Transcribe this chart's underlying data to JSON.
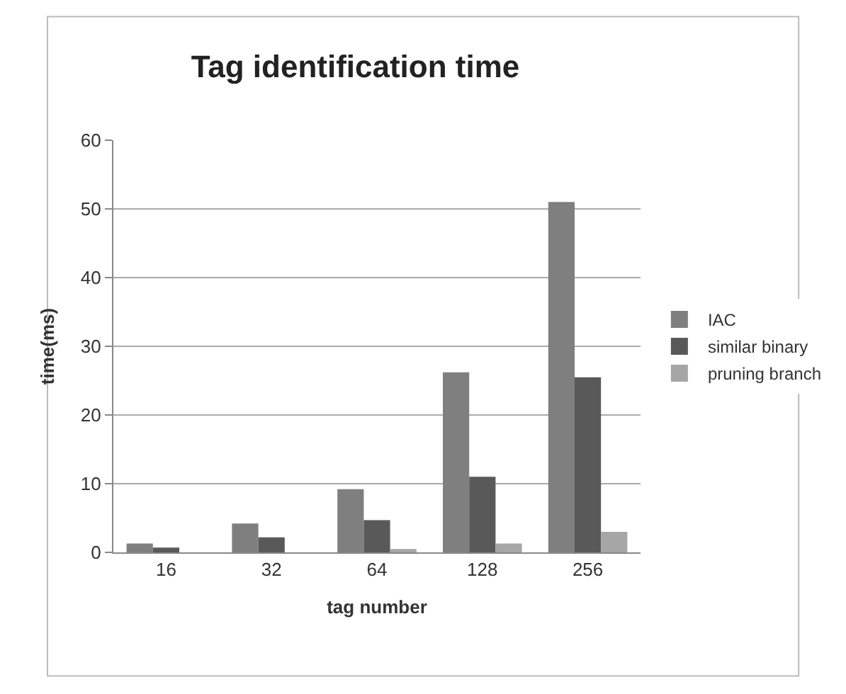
{
  "chart_data": {
    "type": "bar",
    "title": "Tag identification time",
    "xlabel": "tag number",
    "ylabel": "time(ms)",
    "categories": [
      "16",
      "32",
      "64",
      "128",
      "256"
    ],
    "series": [
      {
        "name": "IAC",
        "color": "#7f7f7f",
        "values": [
          1.3,
          4.2,
          9.2,
          26.2,
          51
        ]
      },
      {
        "name": "similar binary",
        "color": "#595959",
        "values": [
          0.7,
          2.2,
          4.7,
          11,
          25.5
        ]
      },
      {
        "name": "pruning branch",
        "color": "#a6a6a6",
        "values": [
          null,
          null,
          0.5,
          1.3,
          3
        ]
      }
    ],
    "ylim": [
      0,
      60
    ],
    "yticks": [
      0,
      10,
      20,
      30,
      40,
      50,
      60
    ],
    "grid": "y",
    "legend": "right"
  }
}
